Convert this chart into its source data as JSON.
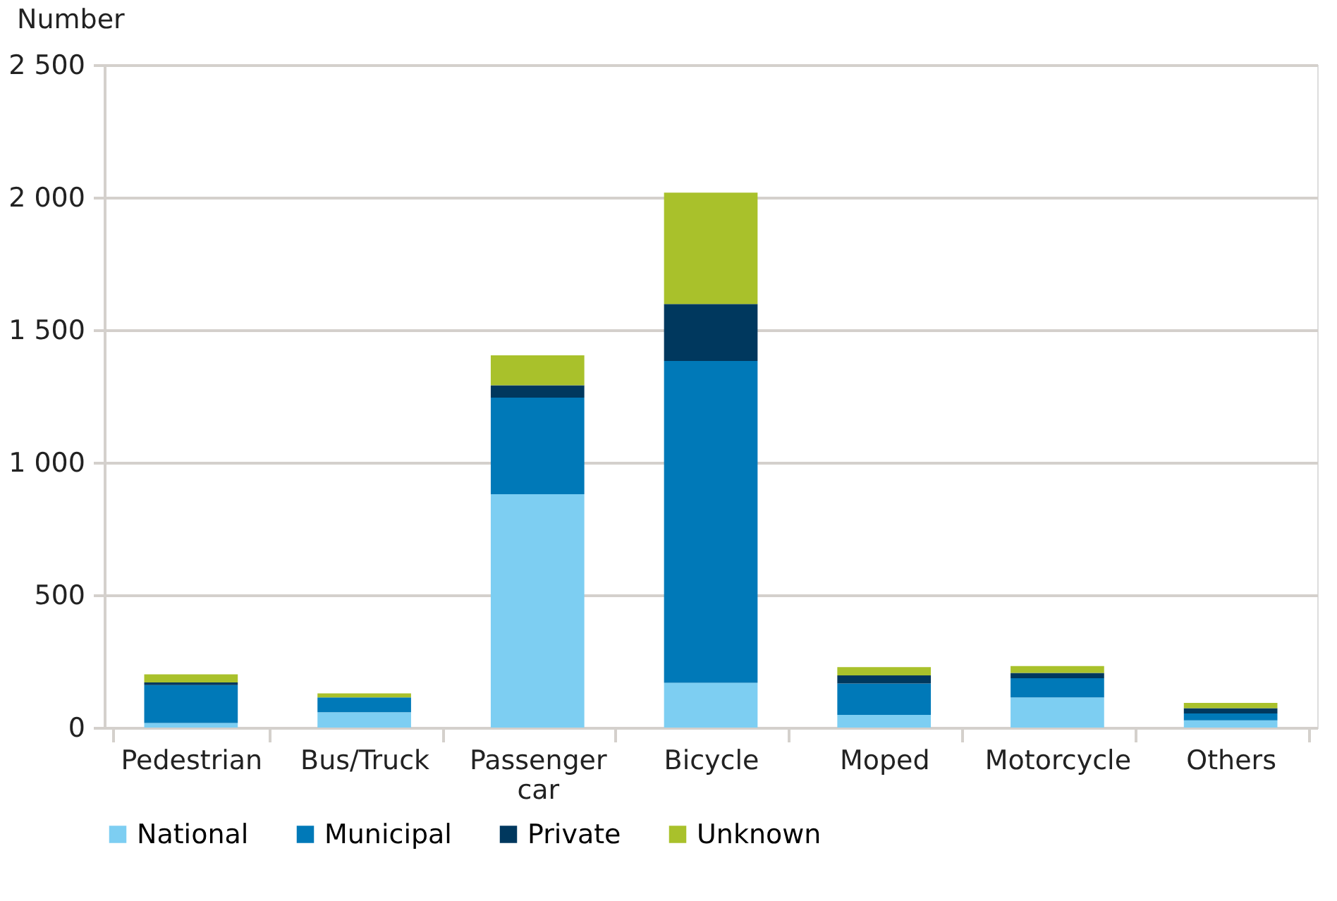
{
  "chart_data": {
    "type": "bar",
    "stacked": true,
    "ylabel": "Number",
    "categories": [
      "Pedestrian",
      "Bus/Truck",
      "Passenger car",
      "Bicycle",
      "Moped",
      "Motorcycle",
      "Others"
    ],
    "series": [
      {
        "name": "National",
        "color": "#7dcef2",
        "values": [
          17,
          58,
          880,
          169,
          48,
          114,
          27
        ]
      },
      {
        "name": "Municipal",
        "color": "#0079b8",
        "values": [
          143,
          56,
          365,
          1214,
          118,
          72,
          26
        ]
      },
      {
        "name": "Private",
        "color": "#00385e",
        "values": [
          10,
          0,
          46,
          215,
          31,
          20,
          20
        ]
      },
      {
        "name": "Unknown",
        "color": "#a9c12b",
        "values": [
          31,
          15,
          113,
          420,
          31,
          26,
          20
        ]
      }
    ],
    "ylim": [
      0,
      2500
    ],
    "yticks": [
      0,
      500,
      {
        "value": 1000,
        "label": "1 000"
      },
      {
        "value": 1500,
        "label": "1 500"
      },
      {
        "value": 2000,
        "label": "2 000"
      },
      {
        "value": 2500,
        "label": "2 500"
      }
    ],
    "grid": "y",
    "legend": "bottom"
  }
}
